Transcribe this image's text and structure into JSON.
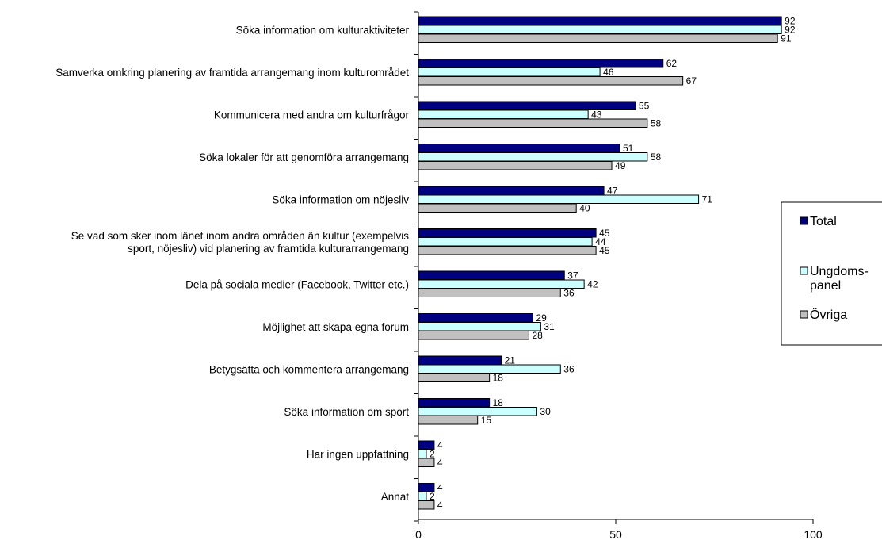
{
  "chart_data": {
    "type": "bar",
    "orientation": "horizontal",
    "categories": [
      [
        "Söka information om kulturaktiviteter"
      ],
      [
        "Samverka omkring planering av framtida arrangemang inom kulturområdet"
      ],
      [
        "Kommunicera med andra om kulturfrågor"
      ],
      [
        "Söka lokaler för att genomföra arrangemang"
      ],
      [
        "Söka information om nöjesliv"
      ],
      [
        "Se vad som sker inom länet inom andra områden än kultur (exempelvis",
        "sport, nöjesliv) vid planering av framtida kulturarrangemang"
      ],
      [
        "Dela på sociala medier (Facebook, Twitter etc.)"
      ],
      [
        "Möjlighet att skapa egna forum"
      ],
      [
        "Betygsätta och kommentera arrangemang"
      ],
      [
        "Söka information om sport"
      ],
      [
        "Har ingen uppfattning"
      ],
      [
        "Annat"
      ]
    ],
    "series": [
      {
        "name": "Total",
        "color": "#000080",
        "values": [
          92,
          62,
          55,
          51,
          47,
          45,
          37,
          29,
          21,
          18,
          4,
          4
        ]
      },
      {
        "name": [
          "Ungdoms-",
          "panel"
        ],
        "color": "#ccffff",
        "values": [
          92,
          46,
          43,
          58,
          71,
          44,
          42,
          31,
          36,
          30,
          2,
          2
        ]
      },
      {
        "name": "Övriga",
        "color": "#c0c0c0",
        "values": [
          91,
          67,
          58,
          49,
          40,
          45,
          36,
          28,
          18,
          15,
          4,
          4
        ]
      }
    ],
    "xlim": [
      0,
      100
    ],
    "xticks": [
      0,
      50,
      100
    ],
    "grid": false,
    "legend_position": "right",
    "title": "",
    "xlabel": "",
    "ylabel": ""
  }
}
